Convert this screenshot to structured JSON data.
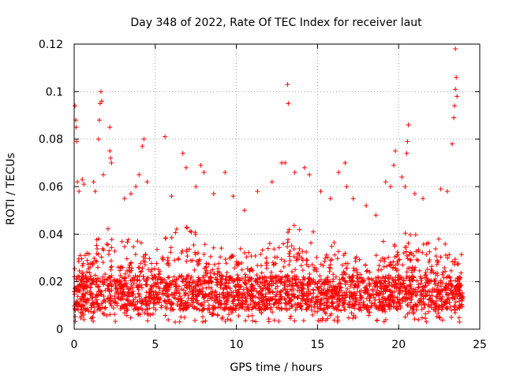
{
  "chart_data": {
    "type": "scatter",
    "title": "Day 348 of 2022, Rate Of TEC Index for receiver laut",
    "xlabel": "GPS time / hours",
    "ylabel": "ROTI / TECUs",
    "xlim": [
      0,
      25
    ],
    "ylim": [
      0,
      0.12
    ],
    "x_ticks": [
      0,
      5,
      10,
      15,
      20,
      25
    ],
    "y_ticks": [
      0,
      0.02,
      0.04,
      0.06,
      0.08,
      0.1,
      0.12
    ],
    "x_tick_labels": [
      "0",
      "5",
      "10",
      "15",
      "20",
      "25"
    ],
    "y_tick_labels": [
      "0",
      "0.02",
      "0.04",
      "0.06",
      "0.08",
      "0.1",
      "0.12"
    ],
    "grid": true,
    "marker": "plus",
    "series": [
      {
        "name": "ROTI",
        "color": "#ff0000",
        "points": [
          [
            0.05,
            0.094
          ],
          [
            0.1,
            0.088
          ],
          [
            0.12,
            0.085
          ],
          [
            0.15,
            0.079
          ],
          [
            0.2,
            0.062
          ],
          [
            0.3,
            0.058
          ],
          [
            0.5,
            0.063
          ],
          [
            0.6,
            0.061
          ],
          [
            1.2,
            0.062
          ],
          [
            1.3,
            0.058
          ],
          [
            1.5,
            0.08
          ],
          [
            1.55,
            0.088
          ],
          [
            1.6,
            0.095
          ],
          [
            1.65,
            0.1
          ],
          [
            1.7,
            0.096
          ],
          [
            1.8,
            0.065
          ],
          [
            2.2,
            0.075
          ],
          [
            2.25,
            0.072
          ],
          [
            2.3,
            0.07
          ],
          [
            2.2,
            0.085
          ],
          [
            3.1,
            0.055
          ],
          [
            3.5,
            0.057
          ],
          [
            3.8,
            0.06
          ],
          [
            4.0,
            0.065
          ],
          [
            4.2,
            0.077
          ],
          [
            4.3,
            0.08
          ],
          [
            4.5,
            0.062
          ],
          [
            5.6,
            0.081
          ],
          [
            6.0,
            0.056
          ],
          [
            6.7,
            0.074
          ],
          [
            6.9,
            0.068
          ],
          [
            7.5,
            0.06
          ],
          [
            7.8,
            0.069
          ],
          [
            8.0,
            0.066
          ],
          [
            8.6,
            0.057
          ],
          [
            9.3,
            0.066
          ],
          [
            9.8,
            0.056
          ],
          [
            10.5,
            0.05
          ],
          [
            11.3,
            0.058
          ],
          [
            12.2,
            0.062
          ],
          [
            12.8,
            0.07
          ],
          [
            13.0,
            0.07
          ],
          [
            13.15,
            0.103
          ],
          [
            13.2,
            0.095
          ],
          [
            13.6,
            0.066
          ],
          [
            14.2,
            0.068
          ],
          [
            14.5,
            0.065
          ],
          [
            15.2,
            0.058
          ],
          [
            15.8,
            0.055
          ],
          [
            16.3,
            0.066
          ],
          [
            16.7,
            0.07
          ],
          [
            16.8,
            0.06
          ],
          [
            17.2,
            0.055
          ],
          [
            18.0,
            0.052
          ],
          [
            18.6,
            0.048
          ],
          [
            19.2,
            0.062
          ],
          [
            19.5,
            0.06
          ],
          [
            19.7,
            0.069
          ],
          [
            19.8,
            0.075
          ],
          [
            20.2,
            0.064
          ],
          [
            20.4,
            0.06
          ],
          [
            20.5,
            0.074
          ],
          [
            20.55,
            0.079
          ],
          [
            20.6,
            0.086
          ],
          [
            21.0,
            0.057
          ],
          [
            21.5,
            0.055
          ],
          [
            22.6,
            0.059
          ],
          [
            23.0,
            0.058
          ],
          [
            23.3,
            0.078
          ],
          [
            23.4,
            0.089
          ],
          [
            23.45,
            0.094
          ],
          [
            23.5,
            0.101
          ],
          [
            23.55,
            0.106
          ],
          [
            23.6,
            0.098
          ],
          [
            23.5,
            0.118
          ]
        ],
        "dense_envelope": {
          "hour_start": 0,
          "hour_end": 24,
          "step_hours": 1,
          "base_min": 0.003,
          "base_max": [
            0.03,
            0.034,
            0.045,
            0.037,
            0.04,
            0.033,
            0.043,
            0.045,
            0.036,
            0.035,
            0.039,
            0.031,
            0.037,
            0.043,
            0.046,
            0.04,
            0.04,
            0.032,
            0.03,
            0.037,
            0.039,
            0.043,
            0.038,
            0.04,
            0.035
          ],
          "core_low": 0.008,
          "core_high": 0.022
        }
      }
    ]
  }
}
